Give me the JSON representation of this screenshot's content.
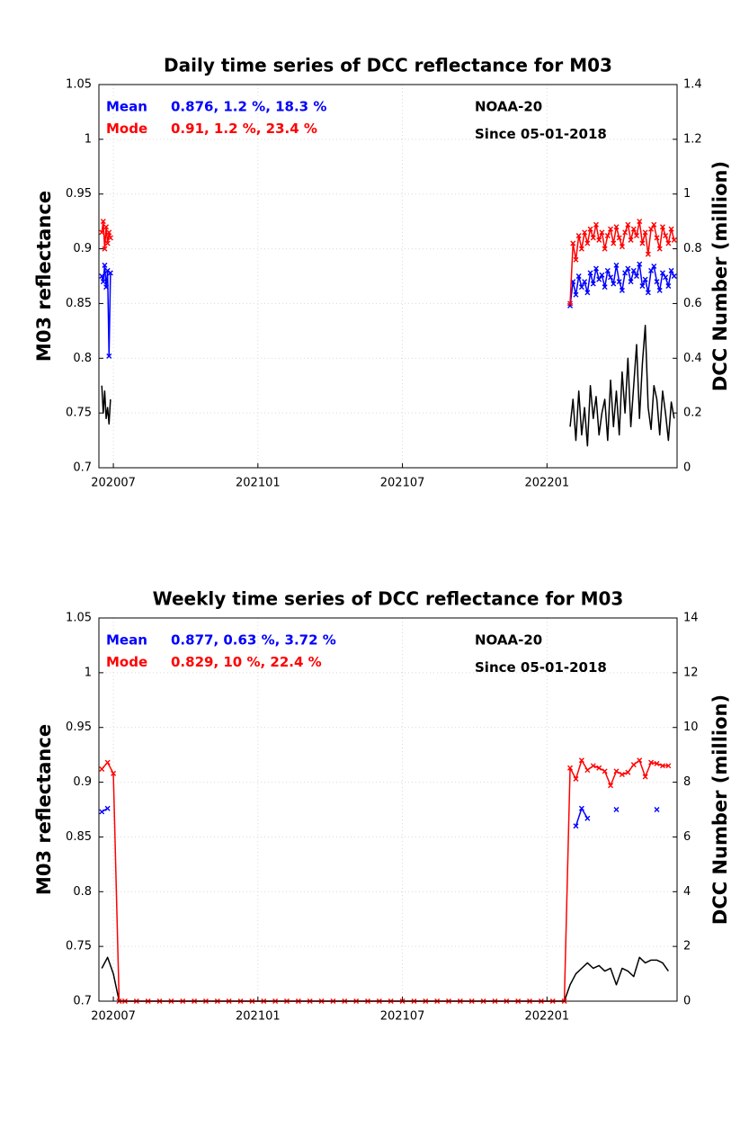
{
  "chart_data": [
    {
      "type": "line",
      "title": "Daily time series of DCC reflectance for M03",
      "y_label": "M03 reflectance",
      "y2_label": "DCC Number (million)",
      "annotations": [
        "NOAA-20",
        "Since 05-01-2018"
      ],
      "xlim": [
        2020.45,
        2022.45
      ],
      "xticks": [
        {
          "value": 2020.5,
          "label": "202007"
        },
        {
          "value": 2021.0,
          "label": "202101"
        },
        {
          "value": 2021.5,
          "label": "202107"
        },
        {
          "value": 2022.0,
          "label": "202201"
        }
      ],
      "ylim": [
        0.7,
        1.05
      ],
      "yticks": [
        0.7,
        0.75,
        0.8,
        0.85,
        0.9,
        0.95,
        1,
        1.05
      ],
      "y2lim": [
        0,
        1.4
      ],
      "y2ticks": [
        0,
        0.2,
        0.4,
        0.6,
        0.8,
        1,
        1.2,
        1.4
      ],
      "grid": true,
      "x": [
        2020.46,
        2020.465,
        2020.47,
        2020.475,
        2020.48,
        2020.485,
        2020.49,
        2021.3,
        2022.08,
        2022.09,
        2022.1,
        2022.11,
        2022.12,
        2022.13,
        2022.14,
        2022.15,
        2022.16,
        2022.17,
        2022.18,
        2022.19,
        2022.2,
        2022.21,
        2022.22,
        2022.23,
        2022.24,
        2022.25,
        2022.26,
        2022.27,
        2022.28,
        2022.29,
        2022.3,
        2022.31,
        2022.32,
        2022.33,
        2022.34,
        2022.35,
        2022.36,
        2022.37,
        2022.38,
        2022.39,
        2022.4,
        2022.41,
        2022.42,
        2022.43,
        2022.44
      ],
      "series": [
        {
          "color": "#000000",
          "axis": "y2",
          "values": [
            0.3,
            0.2,
            0.28,
            0.18,
            0.22,
            0.16,
            0.25,
            null,
            0.15,
            0.25,
            0.1,
            0.28,
            0.12,
            0.22,
            0.08,
            0.3,
            0.18,
            0.26,
            0.12,
            0.2,
            0.25,
            0.1,
            0.32,
            0.15,
            0.28,
            0.12,
            0.35,
            0.2,
            0.4,
            0.15,
            0.3,
            0.45,
            0.18,
            0.38,
            0.52,
            0.22,
            0.14,
            0.3,
            0.25,
            0.12,
            0.28,
            0.2,
            0.1,
            0.24,
            0.18
          ]
        },
        {
          "name": "Mean",
          "stats": "0.876, 1.2 %, 18.3 %",
          "color": "#0000ff",
          "marker": "x",
          "values": [
            0.875,
            0.87,
            0.885,
            0.865,
            0.88,
            0.802,
            0.878,
            null,
            0.848,
            0.87,
            0.858,
            0.875,
            0.865,
            0.87,
            0.86,
            0.878,
            0.868,
            0.882,
            0.872,
            0.876,
            0.865,
            0.88,
            0.874,
            0.868,
            0.885,
            0.87,
            0.862,
            0.878,
            0.882,
            0.87,
            0.88,
            0.875,
            0.886,
            0.866,
            0.872,
            0.86,
            0.88,
            0.884,
            0.87,
            0.862,
            0.878,
            0.874,
            0.866,
            0.88,
            0.875
          ]
        },
        {
          "name": "Mode",
          "stats": "0.91, 1.2 %, 23.4 %",
          "color": "#ff0000",
          "marker": "x",
          "values": [
            0.915,
            0.925,
            0.9,
            0.92,
            0.905,
            0.915,
            0.91,
            null,
            0.85,
            0.905,
            0.89,
            0.912,
            0.9,
            0.915,
            0.905,
            0.918,
            0.91,
            0.922,
            0.908,
            0.915,
            0.9,
            0.912,
            0.918,
            0.905,
            0.92,
            0.91,
            0.902,
            0.915,
            0.922,
            0.908,
            0.918,
            0.912,
            0.925,
            0.905,
            0.915,
            0.895,
            0.918,
            0.922,
            0.91,
            0.9,
            0.92,
            0.912,
            0.905,
            0.918,
            0.908
          ]
        }
      ]
    },
    {
      "type": "line",
      "title": "Weekly time series of DCC reflectance for M03",
      "y_label": "M03 reflectance",
      "y2_label": "DCC Number (million)",
      "annotations": [
        "NOAA-20",
        "Since 05-01-2018"
      ],
      "xlim": [
        2020.45,
        2022.45
      ],
      "xticks": [
        {
          "value": 2020.5,
          "label": "202007"
        },
        {
          "value": 2021.0,
          "label": "202101"
        },
        {
          "value": 2021.5,
          "label": "202107"
        },
        {
          "value": 2022.0,
          "label": "202201"
        }
      ],
      "ylim": [
        0.7,
        1.05
      ],
      "yticks": [
        0.7,
        0.75,
        0.8,
        0.85,
        0.9,
        0.95,
        1,
        1.05
      ],
      "y2lim": [
        0,
        14
      ],
      "y2ticks": [
        0,
        2,
        4,
        6,
        8,
        10,
        12,
        14
      ],
      "grid": true,
      "x": [
        2020.46,
        2020.48,
        2020.5,
        2020.52,
        2020.54,
        2020.58,
        2020.62,
        2020.66,
        2020.7,
        2020.74,
        2020.78,
        2020.82,
        2020.86,
        2020.9,
        2020.94,
        2020.98,
        2021.02,
        2021.06,
        2021.1,
        2021.14,
        2021.18,
        2021.22,
        2021.26,
        2021.3,
        2021.34,
        2021.38,
        2021.42,
        2021.46,
        2021.5,
        2021.54,
        2021.58,
        2021.62,
        2021.66,
        2021.7,
        2021.74,
        2021.78,
        2021.82,
        2021.86,
        2021.9,
        2021.94,
        2021.98,
        2022.02,
        2022.06,
        2022.08,
        2022.1,
        2022.12,
        2022.14,
        2022.16,
        2022.18,
        2022.2,
        2022.22,
        2022.24,
        2022.26,
        2022.28,
        2022.3,
        2022.32,
        2022.34,
        2022.36,
        2022.38,
        2022.4,
        2022.42
      ],
      "series": [
        {
          "color": "#000000",
          "axis": "y2",
          "values": [
            1.2,
            1.6,
            1.0,
            0,
            0,
            0,
            0,
            0,
            0,
            0,
            0,
            0,
            0,
            0,
            0,
            0,
            0,
            0,
            0,
            0,
            0,
            0,
            0,
            0,
            0,
            0,
            0,
            0,
            0,
            0,
            0,
            0,
            0,
            0,
            0,
            0,
            0,
            0,
            0,
            0,
            0,
            0,
            0,
            0.6,
            1.0,
            1.2,
            1.4,
            1.2,
            1.3,
            1.1,
            1.2,
            0.6,
            1.2,
            1.1,
            0.9,
            1.6,
            1.4,
            1.5,
            1.5,
            1.4,
            1.1
          ]
        },
        {
          "name": "Mean",
          "stats": "0.877, 0.63 %, 3.72 %",
          "color": "#0000ff",
          "marker": "x",
          "values": [
            0.873,
            0.876,
            null,
            null,
            null,
            null,
            null,
            null,
            null,
            null,
            null,
            null,
            null,
            null,
            null,
            null,
            null,
            null,
            null,
            null,
            null,
            null,
            null,
            null,
            null,
            null,
            null,
            null,
            null,
            null,
            null,
            null,
            null,
            null,
            null,
            null,
            null,
            null,
            null,
            null,
            null,
            null,
            null,
            null,
            0.86,
            0.876,
            0.867,
            null,
            null,
            null,
            null,
            0.875,
            null,
            null,
            null,
            null,
            null,
            null,
            0.875,
            null,
            null
          ]
        },
        {
          "name": "Mode",
          "stats": "0.829, 10 %, 22.4 %",
          "color": "#ff0000",
          "marker": "x",
          "values": [
            0.912,
            0.918,
            0.908,
            0.7,
            0.7,
            0.7,
            0.7,
            0.7,
            0.7,
            0.7,
            0.7,
            0.7,
            0.7,
            0.7,
            0.7,
            0.7,
            0.7,
            0.7,
            0.7,
            0.7,
            0.7,
            0.7,
            0.7,
            0.7,
            0.7,
            0.7,
            0.7,
            0.7,
            0.7,
            0.7,
            0.7,
            0.7,
            0.7,
            0.7,
            0.7,
            0.7,
            0.7,
            0.7,
            0.7,
            0.7,
            0.7,
            0.7,
            0.7,
            0.913,
            0.903,
            0.92,
            0.911,
            0.915,
            0.913,
            0.91,
            0.897,
            0.91,
            0.907,
            0.909,
            0.916,
            0.92,
            0.905,
            0.918,
            0.917,
            0.915,
            0.915
          ]
        }
      ]
    }
  ]
}
